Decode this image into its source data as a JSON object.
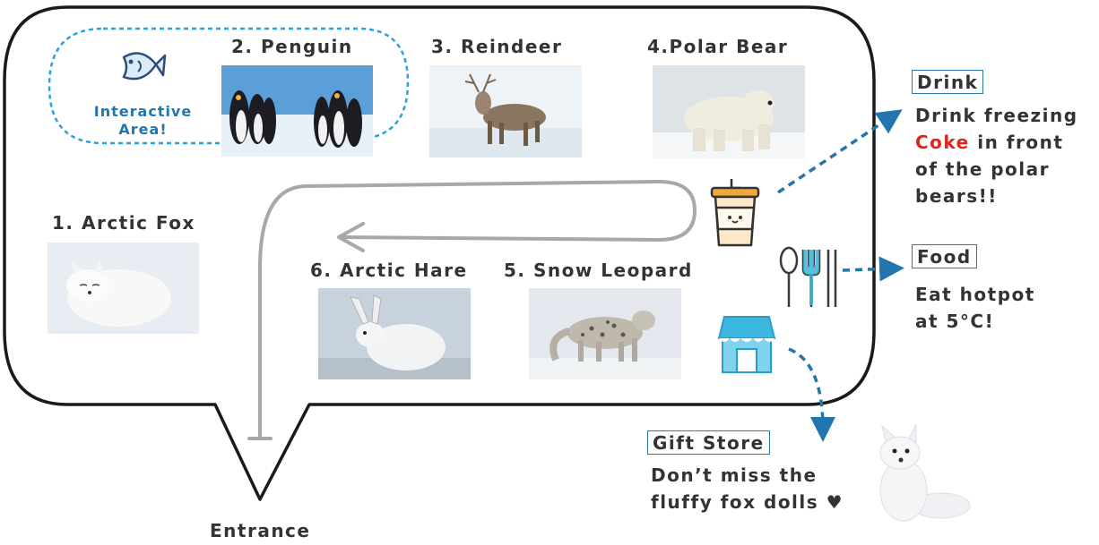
{
  "exhibits": {
    "arctic_fox": "1. Arctic Fox",
    "penguin": "2. Penguin",
    "reindeer": "3. Reindeer",
    "polar_bear": "4.Polar Bear",
    "snow_leopard": "5. Snow Leopard",
    "arctic_hare": "6. Arctic Hare"
  },
  "interactive_area": {
    "line1": "Interactive",
    "line2": "Area!"
  },
  "entrance": "Entrance",
  "drink": {
    "title": "Drink",
    "line1": "Drink freezing",
    "highlight": "Coke",
    "line2_rest": " in front",
    "line3": "of the polar",
    "line4": "bears!!"
  },
  "food": {
    "title": "Food",
    "line1": "Eat hotpot",
    "line2": "at 5°C!"
  },
  "gift_store": {
    "title": "Gift Store",
    "line1": "Don’t miss the",
    "line2": "fluffy fox dolls ♥"
  },
  "icons": [
    "fish-icon",
    "drink-cup-icon",
    "cutlery-icon",
    "store-icon"
  ],
  "colors": {
    "accent": "#2176ae",
    "highlight": "#e0261b",
    "text": "#333333"
  }
}
